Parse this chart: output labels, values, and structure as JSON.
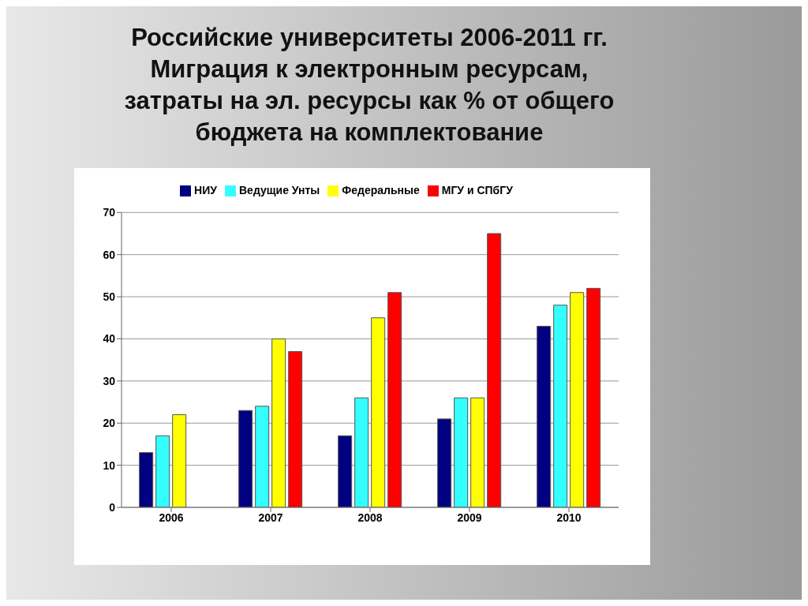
{
  "chart_data": {
    "type": "bar",
    "title": "Российские университеты 2006-2011 гг.\nМиграция к электронным ресурсам,\nзатраты на эл. ресурсы как % от общего\nбюджета на комплектование",
    "categories": [
      "2006",
      "2007",
      "2008",
      "2009",
      "2010"
    ],
    "series": [
      {
        "name": "НИУ",
        "color": "#000080",
        "values": [
          13,
          23,
          17,
          21,
          43
        ]
      },
      {
        "name": "Ведущие Унты",
        "color": "#33ffff",
        "values": [
          17,
          24,
          26,
          26,
          48
        ]
      },
      {
        "name": "Федеральные",
        "color": "#ffff00",
        "values": [
          22,
          40,
          45,
          26,
          51
        ]
      },
      {
        "name": "МГУ и СПбГУ",
        "color": "#ff0000",
        "values": [
          null,
          37,
          51,
          65,
          52
        ]
      }
    ],
    "ylim": [
      0,
      70
    ],
    "yticks": [
      0,
      10,
      20,
      30,
      40,
      50,
      60,
      70
    ],
    "grid": "y",
    "legend": "top"
  }
}
